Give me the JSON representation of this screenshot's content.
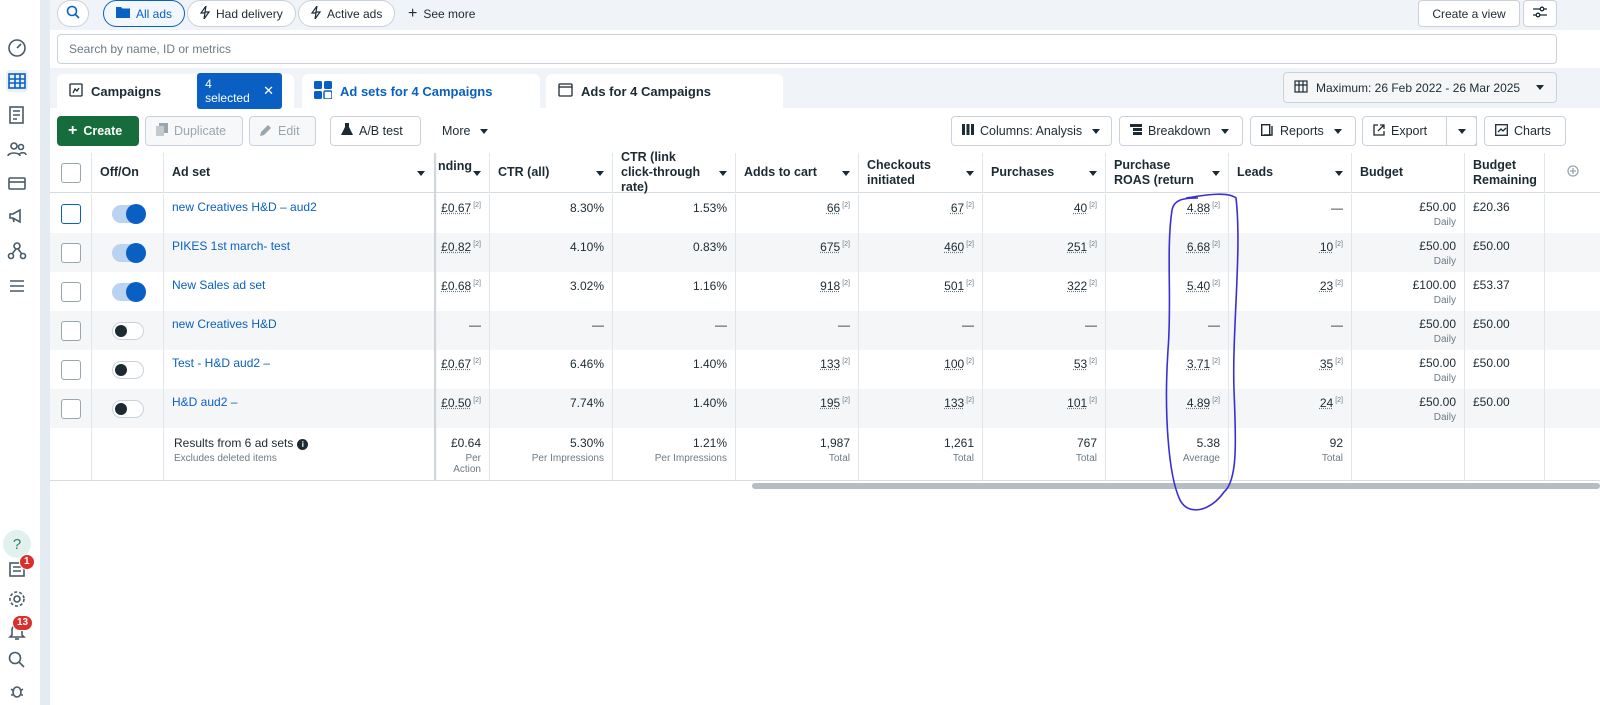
{
  "filters": {
    "all_ads": "All ads",
    "had_delivery": "Had delivery",
    "active_ads": "Active ads",
    "see_more": "See more",
    "create_view": "Create a view"
  },
  "search": {
    "placeholder": "Search by name, ID or metrics"
  },
  "tabs": {
    "campaigns": "Campaigns",
    "selected": "4 selected",
    "ad_sets": "Ad sets for 4 Campaigns",
    "ads": "Ads for 4 Campaigns"
  },
  "date_range": "Maximum: 26 Feb 2022 - 26 Mar 2025",
  "toolbar": {
    "create": "Create",
    "duplicate": "Duplicate",
    "edit": "Edit",
    "ab_test": "A/B test",
    "more": "More",
    "columns": "Columns: Analysis",
    "breakdown": "Breakdown",
    "reports": "Reports",
    "export": "Export",
    "charts": "Charts"
  },
  "notifications": {
    "inbox": "1",
    "alerts": "13"
  },
  "table": {
    "headers": {
      "offon": "Off/On",
      "adset": "Ad set",
      "spending": "nding",
      "ctr_all": "CTR (all)",
      "ctr_link": "CTR (link click-through rate)",
      "adds": "Adds to cart",
      "checkouts": "Checkouts initiated",
      "purchases": "Purchases",
      "roas": "Purchase ROAS (return on ad...",
      "leads": "Leads",
      "budget": "Budget",
      "remaining": "Budget Remaining"
    },
    "sup": "[2]",
    "rows": [
      {
        "name": "new Creatives H&D – aud2",
        "cost": "£0.67",
        "ctr": "8.30%",
        "ctr_link": "1.53%",
        "adds": "66",
        "checkouts": "67",
        "purchases": "40",
        "roas": "4.88",
        "leads": "—",
        "budget": "£50.00",
        "period": "Daily",
        "remaining": "£20.36"
      },
      {
        "name": "PIKES 1st march- test",
        "cost": "£0.82",
        "ctr": "4.10%",
        "ctr_link": "0.83%",
        "adds": "675",
        "checkouts": "460",
        "purchases": "251",
        "roas": "6.68",
        "leads": "10",
        "budget": "£50.00",
        "period": "Daily",
        "remaining": "£50.00"
      },
      {
        "name": "New Sales ad set",
        "cost": "£0.68",
        "ctr": "3.02%",
        "ctr_link": "1.16%",
        "adds": "918",
        "checkouts": "501",
        "purchases": "322",
        "roas": "5.40",
        "leads": "23",
        "budget": "£100.00",
        "period": "Daily",
        "remaining": "£53.37"
      },
      {
        "name": "new Creatives H&D",
        "cost": "—",
        "ctr": "—",
        "ctr_link": "—",
        "adds": "—",
        "checkouts": "—",
        "purchases": "—",
        "roas": "—",
        "leads": "—",
        "budget": "£50.00",
        "period": "Daily",
        "remaining": "£50.00"
      },
      {
        "name": "Test - H&D aud2 –",
        "cost": "£0.67",
        "ctr": "6.46%",
        "ctr_link": "1.40%",
        "adds": "133",
        "checkouts": "100",
        "purchases": "53",
        "roas": "3.71",
        "leads": "35",
        "budget": "£50.00",
        "period": "Daily",
        "remaining": "£50.00"
      },
      {
        "name": "H&D aud2 –",
        "cost": "£0.50",
        "ctr": "7.74%",
        "ctr_link": "1.40%",
        "adds": "195",
        "checkouts": "133",
        "purchases": "101",
        "roas": "4.89",
        "leads": "24",
        "budget": "£50.00",
        "period": "Daily",
        "remaining": "£50.00"
      }
    ],
    "totals": {
      "label": "Results from 6 ad sets",
      "note": "Excludes deleted items",
      "cost": "£0.64",
      "cost_sub": "Per Action",
      "ctr": "5.30%",
      "ctr_sub": "Per Impressions",
      "ctr_link": "1.21%",
      "ctr_link_sub": "Per Impressions",
      "adds": "1,987",
      "adds_sub": "Total",
      "checkouts": "1,261",
      "checkouts_sub": "Total",
      "purchases": "767",
      "purchases_sub": "Total",
      "roas": "5.38",
      "roas_sub": "Average",
      "leads": "92",
      "leads_sub": "Total"
    }
  },
  "colors": {
    "accent": "#0a60c2",
    "create_green": "#166c3b",
    "annotation": "#3a2fd6"
  }
}
